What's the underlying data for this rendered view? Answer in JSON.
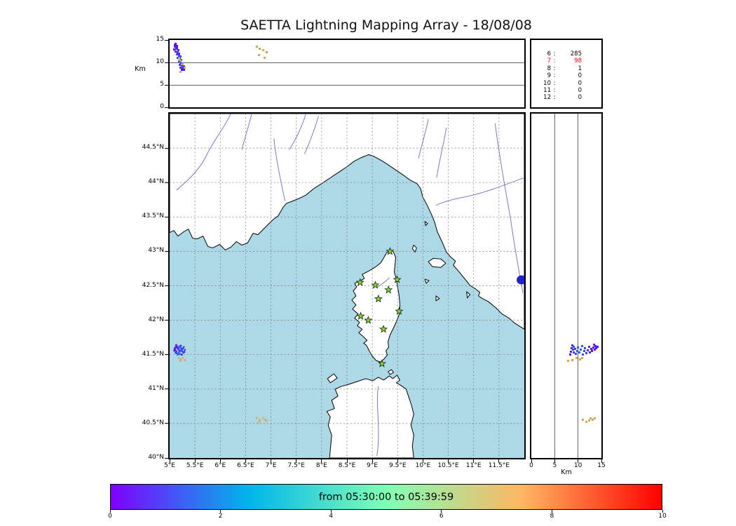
{
  "title": "SAETTA Lightning Mapping Array - 18/08/08",
  "colors": {
    "sea": "#ADD8E6",
    "land": "#ffffff",
    "coast": "#000000",
    "river": "#6a6ad0",
    "lake": "#2020cc",
    "grid": "#777777",
    "station_fill": "#7ddd20",
    "station_edge": "#1a1a1a",
    "highlight_red": "#ff0000"
  },
  "chart_data": [
    {
      "type": "scatter",
      "name": "altitude-vs-longitude",
      "ylabel": "Km",
      "ylim": [
        0,
        15
      ],
      "yticks": [
        {
          "v": 15,
          "label": "15"
        },
        {
          "v": 10,
          "label": "10"
        },
        {
          "v": 5,
          "label": "5"
        },
        {
          "v": 0,
          "label": "0"
        }
      ],
      "xlim_deg_east": [
        5,
        12
      ],
      "grid_alts_km": [
        5,
        10
      ],
      "series_ref": "vhf_sources"
    },
    {
      "type": "table",
      "name": "stations-contributing-counts",
      "rows": [
        [
          "6",
          "285"
        ],
        [
          "7",
          "98"
        ],
        [
          "8",
          "1"
        ],
        [
          "9",
          "0"
        ],
        [
          "10",
          "0"
        ],
        [
          "11",
          "0"
        ],
        [
          "12",
          "0"
        ]
      ],
      "highlight_station": "7",
      "highlight_color": "#ff0000"
    },
    {
      "type": "scatter",
      "name": "map-latitude-vs-longitude",
      "xlim_deg_east": [
        5,
        12
      ],
      "ylim_deg_north": [
        40,
        45
      ],
      "lat_ticks": [
        {
          "v": 44.5,
          "label": "44.5°N"
        },
        {
          "v": 44,
          "label": "44°N"
        },
        {
          "v": 43.5,
          "label": "43.5°N"
        },
        {
          "v": 43,
          "label": "43°N"
        },
        {
          "v": 42.5,
          "label": "42.5°N"
        },
        {
          "v": 42,
          "label": "42°N"
        },
        {
          "v": 41.5,
          "label": "41.5°N"
        },
        {
          "v": 41,
          "label": "41°N"
        },
        {
          "v": 40.5,
          "label": "40.5°N"
        },
        {
          "v": 40,
          "label": "40°N"
        }
      ],
      "lon_ticks": [
        {
          "v": 5,
          "label": "5°E"
        },
        {
          "v": 5.5,
          "label": "5.5°E"
        },
        {
          "v": 6,
          "label": "6°E"
        },
        {
          "v": 6.5,
          "label": "6.5°E"
        },
        {
          "v": 7,
          "label": "7°E"
        },
        {
          "v": 7.5,
          "label": "7.5°E"
        },
        {
          "v": 8,
          "label": "8°E"
        },
        {
          "v": 8.5,
          "label": "8.5°E"
        },
        {
          "v": 9,
          "label": "9°E"
        },
        {
          "v": 9.5,
          "label": "9.5°E"
        },
        {
          "v": 10,
          "label": "10°E"
        },
        {
          "v": 10.5,
          "label": "10.5°E"
        },
        {
          "v": 11,
          "label": "11°E"
        },
        {
          "v": 11.5,
          "label": "11.5°E"
        }
      ],
      "stations_lon_lat": [
        [
          9.35,
          43.0
        ],
        [
          8.76,
          42.55
        ],
        [
          9.06,
          42.51
        ],
        [
          9.32,
          42.44
        ],
        [
          9.49,
          42.59
        ],
        [
          9.12,
          42.31
        ],
        [
          9.53,
          42.13
        ],
        [
          8.77,
          42.06
        ],
        [
          8.92,
          42.0
        ],
        [
          9.22,
          41.87
        ],
        [
          9.19,
          41.37
        ]
      ],
      "series_ref": "vhf_sources"
    },
    {
      "type": "scatter",
      "name": "altitude-vs-latitude",
      "xlabel": "Km",
      "xlim": [
        0,
        15
      ],
      "xticks": [
        {
          "v": 0,
          "label": "0"
        },
        {
          "v": 5,
          "label": "5"
        },
        {
          "v": 10,
          "label": "10"
        },
        {
          "v": 15,
          "label": "15"
        }
      ],
      "ylim_deg_north": [
        40,
        45
      ],
      "grid_alts_km": [
        5,
        10
      ],
      "series_ref": "vhf_sources"
    },
    {
      "type": "colorbar",
      "name": "time-colorbar",
      "label": "from 05:30:00 to 05:39:59",
      "start_time": "05:30:00",
      "end_time": "05:39:59",
      "ticks": [
        {
          "v": 0,
          "label": "0"
        },
        {
          "v": 2,
          "label": "2"
        },
        {
          "v": 4,
          "label": "4"
        },
        {
          "v": 6,
          "label": "6"
        },
        {
          "v": 8,
          "label": "8"
        },
        {
          "v": 10,
          "label": "10"
        }
      ],
      "tick_range": [
        0,
        10
      ],
      "gradient": [
        "#8000ff",
        "#00b5eb",
        "#80ffb5",
        "#ffb561",
        "#ff0000"
      ]
    }
  ],
  "vhf_sources": {
    "columns": [
      "lon_deg_e",
      "lat_deg_n",
      "alt_km",
      "color"
    ],
    "points": [
      [
        5.12,
        41.61,
        14.2,
        "#6a00f8"
      ],
      [
        5.1,
        41.59,
        13.9,
        "#6606f7"
      ],
      [
        5.14,
        41.62,
        13.7,
        "#620cf5"
      ],
      [
        5.11,
        41.57,
        13.5,
        "#5e12f4"
      ],
      [
        5.15,
        41.6,
        13.2,
        "#5a18f3"
      ],
      [
        5.13,
        41.55,
        13.0,
        "#561ef2"
      ],
      [
        5.17,
        41.58,
        12.8,
        "#5224f1"
      ],
      [
        5.12,
        41.53,
        12.5,
        "#4e2af0"
      ],
      [
        5.16,
        41.61,
        12.3,
        "#4a30ef"
      ],
      [
        5.19,
        41.56,
        12.0,
        "#4636ee"
      ],
      [
        5.14,
        41.52,
        11.8,
        "#423ced"
      ],
      [
        5.18,
        41.59,
        11.5,
        "#3e42ec"
      ],
      [
        5.21,
        41.55,
        11.3,
        "#3a48eb"
      ],
      [
        5.16,
        41.5,
        11.0,
        "#364eea"
      ],
      [
        5.2,
        41.62,
        10.8,
        "#3254e9"
      ],
      [
        5.23,
        41.57,
        10.5,
        "#2e5ae8"
      ],
      [
        5.18,
        41.53,
        10.3,
        "#2a60e7"
      ],
      [
        5.22,
        41.6,
        10.0,
        "#2666e6"
      ],
      [
        5.25,
        41.55,
        9.8,
        "#2a5ae9"
      ],
      [
        5.2,
        41.51,
        9.5,
        "#3048ec"
      ],
      [
        5.24,
        41.58,
        9.3,
        "#3640ee"
      ],
      [
        5.27,
        41.53,
        9.0,
        "#3c38f0"
      ],
      [
        5.22,
        41.63,
        8.8,
        "#422ef2"
      ],
      [
        5.26,
        41.59,
        8.6,
        "#4824f4"
      ],
      [
        5.29,
        41.54,
        8.4,
        "#4e1af6"
      ],
      [
        5.24,
        41.5,
        8.3,
        "#540ff8"
      ],
      [
        5.28,
        41.61,
        9.1,
        "#2e52e9"
      ],
      [
        5.09,
        41.56,
        12.9,
        "#5c15f3"
      ],
      [
        5.3,
        41.57,
        8.9,
        "#3444ed"
      ],
      [
        5.13,
        41.64,
        13.4,
        "#5a1af2"
      ],
      [
        5.18,
        41.45,
        10.9,
        "#d8a855"
      ],
      [
        5.22,
        41.43,
        10.4,
        "#dca24c"
      ],
      [
        5.26,
        41.45,
        9.6,
        "#d4ae5e"
      ],
      [
        5.3,
        41.42,
        8.8,
        "#de9e46"
      ],
      [
        5.21,
        41.41,
        7.9,
        "#d9a751"
      ],
      [
        6.72,
        40.58,
        13.5,
        "#d8a855"
      ],
      [
        6.78,
        40.55,
        13.1,
        "#dca24c"
      ],
      [
        6.85,
        40.58,
        12.7,
        "#d4ae5e"
      ],
      [
        6.91,
        40.54,
        12.3,
        "#de9e46"
      ],
      [
        6.76,
        40.52,
        11.7,
        "#d9a751"
      ],
      [
        6.88,
        40.56,
        11.0,
        "#d2aa58"
      ]
    ]
  }
}
